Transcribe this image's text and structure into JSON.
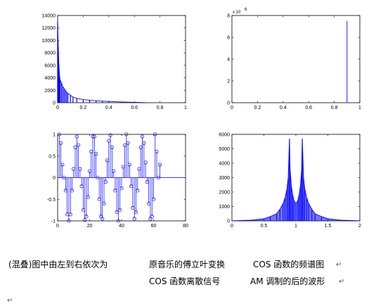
{
  "chart_data": [
    {
      "type": "line",
      "title": "",
      "xlabel": "",
      "ylabel": "",
      "xlim": [
        0,
        1
      ],
      "ylim": [
        0,
        14000
      ],
      "xticks": [
        0,
        0.2,
        0.4,
        0.6,
        0.8,
        1
      ],
      "xtick_labels": [
        "0",
        "0.2",
        "0.4",
        "0.6",
        "0.8",
        "1"
      ],
      "yticks": [
        0,
        2000,
        4000,
        6000,
        8000,
        10000,
        12000,
        14000
      ],
      "ytick_labels": [
        "0",
        "2000",
        "4000",
        "6000",
        "8000",
        "10000",
        "12000",
        "14000"
      ],
      "color": "#0000ff",
      "x": [
        0.0,
        0.005,
        0.01,
        0.015,
        0.02,
        0.03,
        0.04,
        0.05,
        0.06,
        0.07,
        0.08,
        0.1,
        0.12,
        0.15,
        0.2,
        0.25,
        0.3,
        0.35,
        0.4,
        0.5,
        0.6,
        0.7
      ],
      "values": [
        13000,
        9000,
        6000,
        4300,
        3600,
        3200,
        2600,
        2300,
        2000,
        1700,
        1500,
        1200,
        900,
        700,
        500,
        400,
        320,
        250,
        200,
        120,
        60,
        0
      ]
    },
    {
      "type": "line",
      "title": "",
      "xlabel": "",
      "ylabel": "",
      "xlim": [
        0,
        1
      ],
      "ylim": [
        0,
        8
      ],
      "y_exponent_label": "x 10",
      "y_exponent_power": "6",
      "xticks": [
        0,
        0.2,
        0.4,
        0.6,
        0.8,
        1
      ],
      "xtick_labels": [
        "0",
        "0.2",
        "0.4",
        "0.6",
        "0.8",
        "1"
      ],
      "yticks": [
        0,
        2,
        4,
        6,
        8
      ],
      "ytick_labels": [
        "0",
        "2",
        "4",
        "6",
        "8"
      ],
      "color": "#0000ff",
      "x": [
        0.9
      ],
      "values": [
        7.5
      ]
    },
    {
      "type": "scatter",
      "title": "",
      "xlabel": "",
      "ylabel": "",
      "xlim": [
        0,
        80
      ],
      "ylim": [
        -1,
        1
      ],
      "xticks": [
        0,
        20,
        40,
        60,
        80
      ],
      "xtick_labels": [
        "0",
        "20",
        "40",
        "60",
        "80"
      ],
      "yticks": [
        -1,
        -0.5,
        0,
        0.5,
        1
      ],
      "ytick_labels": [
        "-1",
        "-0.5",
        "0",
        "0.5",
        "1"
      ],
      "color": "#0000ff",
      "x": [
        1,
        2,
        3,
        4,
        5,
        6,
        7,
        8,
        9,
        10,
        11,
        12,
        13,
        14,
        15,
        16,
        17,
        18,
        19,
        20,
        21,
        22,
        23,
        24,
        25,
        26,
        27,
        28,
        29,
        30,
        31,
        32,
        33,
        34,
        35,
        36,
        37,
        38,
        39,
        40,
        41,
        42,
        43,
        44,
        45,
        46,
        47,
        48,
        49,
        50,
        51,
        52,
        53,
        54,
        55,
        56,
        57,
        58,
        59,
        60,
        61,
        62,
        63,
        64
      ],
      "values": [
        1.0,
        0.8,
        0.3,
        0.0,
        -0.3,
        -0.85,
        -1.0,
        -0.85,
        -0.3,
        0.2,
        0.7,
        0.95,
        0.75,
        0.2,
        -0.2,
        -0.75,
        -0.98,
        -0.9,
        -0.45,
        0.15,
        0.6,
        0.95,
        0.95,
        0.55,
        0.0,
        -0.5,
        -0.9,
        -0.95,
        -0.6,
        -0.1,
        0.4,
        0.85,
        0.98,
        0.7,
        0.15,
        -0.3,
        -0.8,
        -1.0,
        -0.75,
        -0.25,
        0.25,
        0.75,
        1.0,
        0.8,
        0.3,
        -0.2,
        -0.7,
        -0.95,
        -0.8,
        -0.3,
        0.2,
        0.7,
        0.95,
        0.8,
        0.35,
        -0.1,
        -0.6,
        -0.95,
        -0.9,
        -0.5,
        1.0,
        0.6,
        0.0,
        0.3
      ]
    },
    {
      "type": "line",
      "title": "",
      "xlabel": "",
      "ylabel": "",
      "xlim": [
        0,
        2
      ],
      "ylim": [
        0,
        6000
      ],
      "xticks": [
        0,
        0.5,
        1,
        1.5,
        2
      ],
      "xtick_labels": [
        "0",
        "0.5",
        "1",
        "1.5",
        "2"
      ],
      "yticks": [
        0,
        1000,
        2000,
        3000,
        4000,
        5000,
        6000
      ],
      "ytick_labels": [
        "0",
        "1000",
        "2000",
        "3000",
        "4000",
        "5000",
        "6000"
      ],
      "color": "#0000ff",
      "x": [
        0.0,
        0.3,
        0.5,
        0.6,
        0.7,
        0.75,
        0.8,
        0.83,
        0.86,
        0.88,
        0.9,
        0.91,
        0.93,
        0.95,
        0.97,
        1.0,
        1.03,
        1.05,
        1.07,
        1.09,
        1.1,
        1.12,
        1.14,
        1.17,
        1.2,
        1.25,
        1.3,
        1.4,
        1.5,
        1.7,
        2.0
      ],
      "values": [
        0,
        50,
        150,
        300,
        500,
        800,
        1200,
        1600,
        2200,
        3000,
        5700,
        3500,
        2400,
        1800,
        1400,
        1200,
        1400,
        1800,
        2400,
        3500,
        5700,
        3000,
        2200,
        1600,
        1200,
        800,
        500,
        300,
        150,
        50,
        0
      ]
    }
  ],
  "captions": {
    "line1_prefix": "(混叠)图中由左到右依次为",
    "line1_item1": "原音乐的傅立叶变换",
    "line1_item2": "COS 函数的频谱图",
    "line2_item1": "COS 函数离散信号",
    "line2_item2": "AM 调制的后的波形",
    "para_mark": "↵"
  }
}
